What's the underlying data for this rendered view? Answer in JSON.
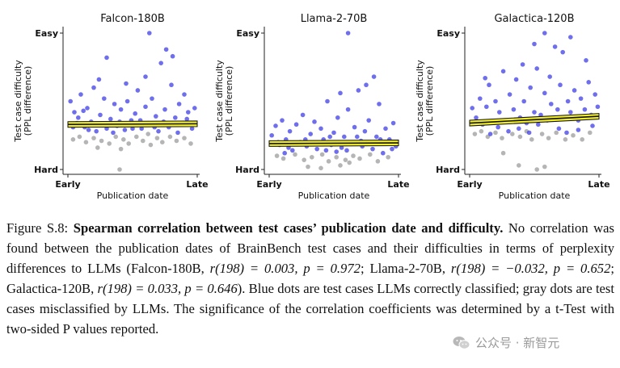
{
  "chart_data": [
    {
      "type": "scatter",
      "title": "Falcon-180B",
      "xlabel": "Publication date",
      "ylabel": [
        "Test case difficulty",
        "(PPL difference)"
      ],
      "xticks": [
        "Early",
        "Late"
      ],
      "yticks": [
        "Hard",
        "Easy"
      ],
      "xlim": [
        0,
        1
      ],
      "ylim": [
        0,
        1
      ],
      "correlation": {
        "r": 0.003,
        "df": 198,
        "p": 0.972
      },
      "fit_line": {
        "x": [
          0,
          1
        ],
        "y": [
          0.33,
          0.335
        ]
      },
      "series": [
        {
          "name": "correctly classified",
          "color": "#3f3fe8",
          "points": [
            [
              0.02,
              0.5
            ],
            [
              0.05,
              0.42
            ],
            [
              0.08,
              0.38
            ],
            [
              0.1,
              0.55
            ],
            [
              0.13,
              0.31
            ],
            [
              0.15,
              0.45
            ],
            [
              0.18,
              0.35
            ],
            [
              0.2,
              0.6
            ],
            [
              0.22,
              0.28
            ],
            [
              0.25,
              0.4
            ],
            [
              0.28,
              0.52
            ],
            [
              0.3,
              0.3
            ],
            [
              0.33,
              0.37
            ],
            [
              0.36,
              0.48
            ],
            [
              0.38,
              0.32
            ],
            [
              0.3,
              0.82
            ],
            [
              0.41,
              0.44
            ],
            [
              0.44,
              0.29
            ],
            [
              0.46,
              0.5
            ],
            [
              0.49,
              0.36
            ],
            [
              0.52,
              0.41
            ],
            [
              0.54,
              0.58
            ],
            [
              0.57,
              0.3
            ],
            [
              0.6,
              0.46
            ],
            [
              0.62,
              0.34
            ],
            [
              0.65,
              0.52
            ],
            [
              0.68,
              0.39
            ],
            [
              0.7,
              0.28
            ],
            [
              0.72,
              0.78
            ],
            [
              0.75,
              0.44
            ],
            [
              0.78,
              0.31
            ],
            [
              0.8,
              0.62
            ],
            [
              0.83,
              0.38
            ],
            [
              0.86,
              0.48
            ],
            [
              0.88,
              0.33
            ],
            [
              0.9,
              0.55
            ],
            [
              0.93,
              0.42
            ],
            [
              0.96,
              0.3
            ],
            [
              0.98,
              0.45
            ],
            [
              0.63,
              1.0
            ],
            [
              0.76,
              0.88
            ],
            [
              0.81,
              0.83
            ],
            [
              0.6,
              0.68
            ],
            [
              0.45,
              0.63
            ],
            [
              0.24,
              0.66
            ],
            [
              0.07,
              0.34
            ],
            [
              0.12,
              0.43
            ],
            [
              0.35,
              0.27
            ],
            [
              0.56,
              0.36
            ],
            [
              0.67,
              0.31
            ],
            [
              0.85,
              0.27
            ],
            [
              0.92,
              0.37
            ],
            [
              0.16,
              0.29
            ],
            [
              0.4,
              0.35
            ],
            [
              0.74,
              0.35
            ],
            [
              0.04,
              0.31
            ],
            [
              0.27,
              0.33
            ],
            [
              0.5,
              0.3
            ],
            [
              0.97,
              0.33
            ]
          ]
        },
        {
          "name": "misclassified",
          "color": "#a8a8a8",
          "points": [
            [
              0.04,
              0.22
            ],
            [
              0.09,
              0.24
            ],
            [
              0.14,
              0.2
            ],
            [
              0.2,
              0.23
            ],
            [
              0.26,
              0.21
            ],
            [
              0.32,
              0.19
            ],
            [
              0.37,
              0.24
            ],
            [
              0.43,
              0.22
            ],
            [
              0.47,
              0.19
            ],
            [
              0.53,
              0.24
            ],
            [
              0.58,
              0.21
            ],
            [
              0.64,
              0.18
            ],
            [
              0.69,
              0.23
            ],
            [
              0.73,
              0.2
            ],
            [
              0.79,
              0.24
            ],
            [
              0.84,
              0.21
            ],
            [
              0.9,
              0.23
            ],
            [
              0.95,
              0.19
            ],
            [
              0.4,
              0.0
            ],
            [
              0.41,
              0.15
            ],
            [
              0.23,
              0.16
            ],
            [
              0.62,
              0.26
            ]
          ]
        }
      ]
    },
    {
      "type": "scatter",
      "title": "Llama-2-70B",
      "xlabel": "Publication date",
      "ylabel": [
        "Test case difficulty",
        "(PPL difference)"
      ],
      "xticks": [
        "Early",
        "Late"
      ],
      "yticks": [
        "Hard",
        "Easy"
      ],
      "xlim": [
        0,
        1
      ],
      "ylim": [
        0,
        1
      ],
      "correlation": {
        "r": -0.032,
        "df": 198,
        "p": 0.652
      },
      "fit_line": {
        "x": [
          0,
          1
        ],
        "y": [
          0.19,
          0.195
        ]
      },
      "series": [
        {
          "name": "correctly classified",
          "color": "#3f3fe8",
          "points": [
            [
              0.02,
              0.25
            ],
            [
              0.05,
              0.32
            ],
            [
              0.08,
              0.18
            ],
            [
              0.1,
              0.36
            ],
            [
              0.13,
              0.22
            ],
            [
              0.16,
              0.28
            ],
            [
              0.18,
              0.14
            ],
            [
              0.21,
              0.33
            ],
            [
              0.24,
              0.2
            ],
            [
              0.26,
              0.4
            ],
            [
              0.29,
              0.17
            ],
            [
              0.32,
              0.26
            ],
            [
              0.35,
              0.35
            ],
            [
              0.37,
              0.15
            ],
            [
              0.4,
              0.3
            ],
            [
              0.42,
              0.22
            ],
            [
              0.45,
              0.5
            ],
            [
              0.48,
              0.18
            ],
            [
              0.5,
              0.27
            ],
            [
              0.53,
              0.38
            ],
            [
              0.56,
              0.16
            ],
            [
              0.58,
              0.24
            ],
            [
              0.61,
              0.44
            ],
            [
              0.64,
              0.2
            ],
            [
              0.66,
              0.31
            ],
            [
              0.69,
              0.58
            ],
            [
              0.72,
              0.17
            ],
            [
              0.74,
              0.28
            ],
            [
              0.77,
              0.36
            ],
            [
              0.8,
              0.15
            ],
            [
              0.83,
              0.24
            ],
            [
              0.85,
              0.48
            ],
            [
              0.88,
              0.19
            ],
            [
              0.9,
              0.3
            ],
            [
              0.93,
              0.22
            ],
            [
              0.96,
              0.34
            ],
            [
              0.98,
              0.17
            ],
            [
              0.61,
              1.0
            ],
            [
              0.81,
              0.68
            ],
            [
              0.75,
              0.62
            ],
            [
              0.55,
              0.56
            ],
            [
              0.07,
              0.2
            ],
            [
              0.15,
              0.16
            ],
            [
              0.34,
              0.19
            ],
            [
              0.47,
              0.24
            ],
            [
              0.6,
              0.14
            ],
            [
              0.71,
              0.21
            ],
            [
              0.86,
              0.22
            ],
            [
              0.95,
              0.15
            ],
            [
              0.28,
              0.22
            ],
            [
              0.52,
              0.13
            ],
            [
              0.68,
              0.24
            ],
            [
              0.44,
              0.14
            ],
            [
              0.12,
              0.12
            ],
            [
              0.88,
              0.12
            ]
          ]
        },
        {
          "name": "misclassified",
          "color": "#a8a8a8",
          "points": [
            [
              0.06,
              0.1
            ],
            [
              0.11,
              0.08
            ],
            [
              0.2,
              0.11
            ],
            [
              0.27,
              0.07
            ],
            [
              0.33,
              0.09
            ],
            [
              0.41,
              0.11
            ],
            [
              0.46,
              0.06
            ],
            [
              0.52,
              0.09
            ],
            [
              0.59,
              0.07
            ],
            [
              0.65,
              0.1
            ],
            [
              0.7,
              0.08
            ],
            [
              0.78,
              0.11
            ],
            [
              0.84,
              0.06
            ],
            [
              0.92,
              0.09
            ],
            [
              0.4,
              0.01
            ],
            [
              0.3,
              0.02
            ],
            [
              0.55,
              0.03
            ],
            [
              0.62,
              0.05
            ]
          ]
        }
      ]
    },
    {
      "type": "scatter",
      "title": "Galactica-120B",
      "xlabel": "Publication date",
      "ylabel": [
        "Test case difficulty",
        "(PPL difference)"
      ],
      "xticks": [
        "Early",
        "Late"
      ],
      "yticks": [
        "Hard",
        "Easy"
      ],
      "xlim": [
        0,
        1
      ],
      "ylim": [
        0,
        1
      ],
      "correlation": {
        "r": 0.033,
        "df": 198,
        "p": 0.646
      },
      "fit_line": {
        "x": [
          0,
          1
        ],
        "y": [
          0.34,
          0.39
        ]
      },
      "series": [
        {
          "name": "correctly classified",
          "color": "#3f3fe8",
          "points": [
            [
              0.02,
              0.45
            ],
            [
              0.05,
              0.38
            ],
            [
              0.08,
              0.52
            ],
            [
              0.1,
              0.33
            ],
            [
              0.13,
              0.46
            ],
            [
              0.15,
              0.62
            ],
            [
              0.18,
              0.35
            ],
            [
              0.2,
              0.5
            ],
            [
              0.23,
              0.42
            ],
            [
              0.26,
              0.72
            ],
            [
              0.28,
              0.36
            ],
            [
              0.31,
              0.55
            ],
            [
              0.34,
              0.44
            ],
            [
              0.36,
              0.66
            ],
            [
              0.39,
              0.38
            ],
            [
              0.42,
              0.5
            ],
            [
              0.44,
              0.34
            ],
            [
              0.47,
              0.6
            ],
            [
              0.5,
              0.42
            ],
            [
              0.52,
              0.74
            ],
            [
              0.55,
              0.4
            ],
            [
              0.58,
              0.56
            ],
            [
              0.6,
              0.36
            ],
            [
              0.63,
              0.48
            ],
            [
              0.66,
              0.9
            ],
            [
              0.68,
              0.44
            ],
            [
              0.7,
              0.62
            ],
            [
              0.73,
              0.38
            ],
            [
              0.76,
              0.5
            ],
            [
              0.78,
              0.42
            ],
            [
              0.81,
              0.58
            ],
            [
              0.84,
              0.36
            ],
            [
              0.86,
              0.52
            ],
            [
              0.89,
              0.44
            ],
            [
              0.92,
              0.64
            ],
            [
              0.94,
              0.4
            ],
            [
              0.97,
              0.55
            ],
            [
              0.99,
              0.46
            ],
            [
              0.58,
              1.0
            ],
            [
              0.78,
              0.97
            ],
            [
              0.72,
              0.86
            ],
            [
              0.9,
              0.8
            ],
            [
              0.41,
              0.77
            ],
            [
              0.12,
              0.67
            ],
            [
              0.5,
              0.92
            ],
            [
              0.62,
              0.68
            ],
            [
              0.06,
              0.35
            ],
            [
              0.22,
              0.31
            ],
            [
              0.38,
              0.3
            ],
            [
              0.53,
              0.33
            ],
            [
              0.69,
              0.3
            ],
            [
              0.84,
              0.29
            ],
            [
              0.95,
              0.32
            ],
            [
              0.3,
              0.28
            ],
            [
              0.46,
              0.27
            ],
            [
              0.16,
              0.26
            ],
            [
              0.75,
              0.27
            ]
          ]
        },
        {
          "name": "misclassified",
          "color": "#a8a8a8",
          "points": [
            [
              0.04,
              0.26
            ],
            [
              0.09,
              0.28
            ],
            [
              0.14,
              0.24
            ],
            [
              0.2,
              0.27
            ],
            [
              0.25,
              0.23
            ],
            [
              0.33,
              0.26
            ],
            [
              0.39,
              0.24
            ],
            [
              0.44,
              0.28
            ],
            [
              0.48,
              0.22
            ],
            [
              0.56,
              0.26
            ],
            [
              0.61,
              0.23
            ],
            [
              0.67,
              0.27
            ],
            [
              0.74,
              0.22
            ],
            [
              0.8,
              0.25
            ],
            [
              0.87,
              0.22
            ],
            [
              0.93,
              0.27
            ],
            [
              0.38,
              0.03
            ],
            [
              0.52,
              0.0
            ],
            [
              0.58,
              0.02
            ],
            [
              0.26,
              0.12
            ]
          ]
        }
      ]
    }
  ],
  "caption": {
    "label": "Figure S.8:",
    "heading": "Spearman correlation between test cases’ publication date and difficulty.",
    "t1": "No correlation was found between the publication dates of BrainBench test cases and their difficulties in terms of perplexity differences to LLMs (Falcon-180B,",
    "m1": "r(198) = 0.003, p = 0.972",
    "t2": "; Llama-2-70B,",
    "m2": "r(198) = −0.032, p = 0.652",
    "t3": "; Galactica-120B,",
    "m3": "r(198) = 0.033, p = 0.646",
    "t4": "). Blue dots are test cases LLMs correctly classified; gray dots are test cases misclassified by LLMs. The significance of the correlation coefficients was determined by a t-Test with two-sided P values reported."
  },
  "watermark": {
    "text": "公众号 · 新智元",
    "icon": "wechat-icon"
  }
}
